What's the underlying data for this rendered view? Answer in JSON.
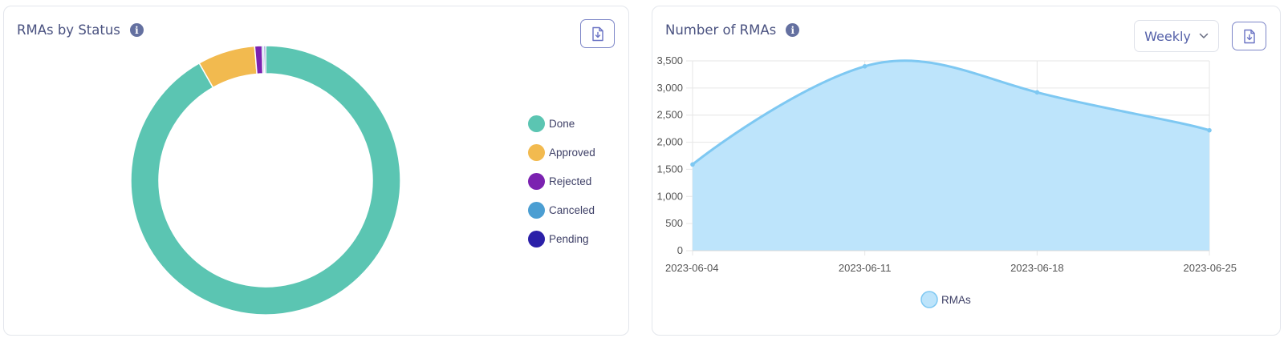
{
  "status_card": {
    "title": "RMAs by Status",
    "icons": {
      "info": "info-icon",
      "export": "download-icon"
    }
  },
  "rma_card": {
    "title": "Number of RMAs",
    "period_selected": "Weekly",
    "icons": {
      "info": "info-icon",
      "export": "download-icon",
      "dropdown": "chevron-down-icon"
    }
  },
  "chart_data": [
    {
      "type": "pie",
      "variant": "doughnut",
      "labels": [
        "Done",
        "Approved",
        "Rejected",
        "Canceled",
        "Pending"
      ],
      "values": [
        91.8,
        6.9,
        0.9,
        0.2,
        0.2
      ],
      "colors": [
        "#5bc5b2",
        "#f2ba4f",
        "#7b22b0",
        "#4b9ed2",
        "#2b20a8"
      ],
      "legend": "right"
    },
    {
      "type": "area",
      "x": [
        "2023-06-04",
        "2023-06-11",
        "2023-06-18",
        "2023-06-25"
      ],
      "series": [
        {
          "name": "RMAs",
          "values": [
            1590,
            3400,
            2920,
            2220
          ],
          "color": "#7ec8f2",
          "fill": "#bde4fb"
        }
      ],
      "ylim": [
        0,
        3500
      ],
      "yticks": [
        0,
        500,
        1000,
        1500,
        2000,
        2500,
        3000,
        3500
      ],
      "ytick_labels": [
        "0",
        "500",
        "1,000",
        "1,500",
        "2,000",
        "2,500",
        "3,000",
        "3,500"
      ],
      "grid": true,
      "legend": "bottom"
    }
  ]
}
